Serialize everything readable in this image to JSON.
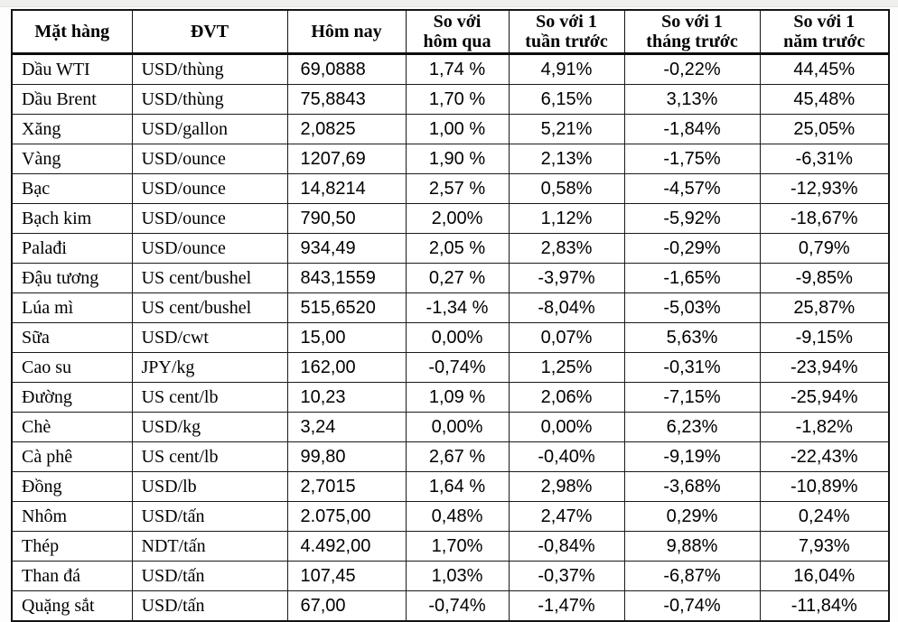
{
  "table": {
    "name": "commodity-price-table",
    "columns": [
      {
        "key": "name",
        "class": "c-name",
        "lines": [
          "Mặt hàng"
        ]
      },
      {
        "key": "unit",
        "class": "c-unit",
        "lines": [
          "ĐVT"
        ]
      },
      {
        "key": "today",
        "class": "c-today",
        "lines": [
          "Hôm nay"
        ]
      },
      {
        "key": "vs_yesterday",
        "class": "c-d1",
        "lines": [
          "So với",
          "hôm qua"
        ]
      },
      {
        "key": "vs_week",
        "class": "c-w1",
        "lines": [
          "So với 1",
          "tuần trước"
        ]
      },
      {
        "key": "vs_month",
        "class": "c-m1",
        "lines": [
          "So với 1",
          "tháng trước"
        ]
      },
      {
        "key": "vs_year",
        "class": "c-y1",
        "lines": [
          "So với 1",
          "năm trước"
        ]
      }
    ],
    "rows": [
      {
        "name": "Dầu WTI",
        "unit": "USD/thùng",
        "today": "69,0888",
        "vs_yesterday": "1,74 %",
        "vs_week": "4,91%",
        "vs_month": "-0,22%",
        "vs_year": "44,45%"
      },
      {
        "name": "Dầu Brent",
        "unit": "USD/thùng",
        "today": "75,8843",
        "vs_yesterday": "1,70 %",
        "vs_week": "6,15%",
        "vs_month": "3,13%",
        "vs_year": "45,48%"
      },
      {
        "name": "Xăng",
        "unit": "USD/gallon",
        "today": "2,0825",
        "vs_yesterday": "1,00 %",
        "vs_week": "5,21%",
        "vs_month": "-1,84%",
        "vs_year": "25,05%"
      },
      {
        "name": "Vàng",
        "unit": "USD/ounce",
        "today": "1207,69",
        "vs_yesterday": "1,90 %",
        "vs_week": "2,13%",
        "vs_month": "-1,75%",
        "vs_year": "-6,31%"
      },
      {
        "name": "Bạc",
        "unit": "USD/ounce",
        "today": "14,8214",
        "vs_yesterday": "2,57 %",
        "vs_week": "0,58%",
        "vs_month": "-4,57%",
        "vs_year": "-12,93%"
      },
      {
        "name": "Bạch kim",
        "unit": "USD/ounce",
        "today": "790,50",
        "vs_yesterday": "2,00%",
        "vs_week": "1,12%",
        "vs_month": "-5,92%",
        "vs_year": "-18,67%"
      },
      {
        "name": "Palađi",
        "unit": "USD/ounce",
        "today": "934,49",
        "vs_yesterday": "2,05 %",
        "vs_week": "2,83%",
        "vs_month": "-0,29%",
        "vs_year": "0,79%"
      },
      {
        "name": "Đậu tương",
        "unit": "US cent/bushel",
        "today": "843,1559",
        "vs_yesterday": "0,27 %",
        "vs_week": "-3,97%",
        "vs_month": "-1,65%",
        "vs_year": "-9,85%"
      },
      {
        "name": "Lúa mì",
        "unit": "US cent/bushel",
        "today": "515,6520",
        "vs_yesterday": "-1,34 %",
        "vs_week": "-8,04%",
        "vs_month": "-5,03%",
        "vs_year": "25,87%"
      },
      {
        "name": "Sữa",
        "unit": "USD/cwt",
        "today": "15,00",
        "vs_yesterday": "0,00%",
        "vs_week": "0,07%",
        "vs_month": "5,63%",
        "vs_year": "-9,15%"
      },
      {
        "name": "Cao su",
        "unit": "JPY/kg",
        "today": "162,00",
        "vs_yesterday": "-0,74%",
        "vs_week": "1,25%",
        "vs_month": "-0,31%",
        "vs_year": "-23,94%"
      },
      {
        "name": "Đường",
        "unit": "US cent/lb",
        "today": "10,23",
        "vs_yesterday": "1,09 %",
        "vs_week": "2,06%",
        "vs_month": "-7,15%",
        "vs_year": "-25,94%"
      },
      {
        "name": "Chè",
        "unit": "USD/kg",
        "today": "3,24",
        "vs_yesterday": "0,00%",
        "vs_week": "0,00%",
        "vs_month": "6,23%",
        "vs_year": "-1,82%"
      },
      {
        "name": "Cà phê",
        "unit": "US cent/lb",
        "today": "99,80",
        "vs_yesterday": "2,67 %",
        "vs_week": "-0,40%",
        "vs_month": "-9,19%",
        "vs_year": "-22,43%"
      },
      {
        "name": "Đồng",
        "unit": "USD/lb",
        "today": "2,7015",
        "vs_yesterday": "1,64 %",
        "vs_week": "2,98%",
        "vs_month": "-3,68%",
        "vs_year": "-10,89%"
      },
      {
        "name": "Nhôm",
        "unit": "USD/tấn",
        "today": "2.075,00",
        "vs_yesterday": "0,48%",
        "vs_week": "2,47%",
        "vs_month": "0,29%",
        "vs_year": "0,24%"
      },
      {
        "name": "Thép",
        "unit": "NDT/tấn",
        "today": "4.492,00",
        "vs_yesterday": "1,70%",
        "vs_week": "-0,84%",
        "vs_month": "9,88%",
        "vs_year": "7,93%"
      },
      {
        "name": "Than đá",
        "unit": "USD/tấn",
        "today": "107,45",
        "vs_yesterday": "1,03%",
        "vs_week": "-0,37%",
        "vs_month": "-6,87%",
        "vs_year": "16,04%"
      },
      {
        "name": "Quặng sắt",
        "unit": "USD/tấn",
        "today": "67,00",
        "vs_yesterday": "-0,74%",
        "vs_week": "-1,47%",
        "vs_month": "-0,74%",
        "vs_year": "-11,84%"
      }
    ]
  }
}
